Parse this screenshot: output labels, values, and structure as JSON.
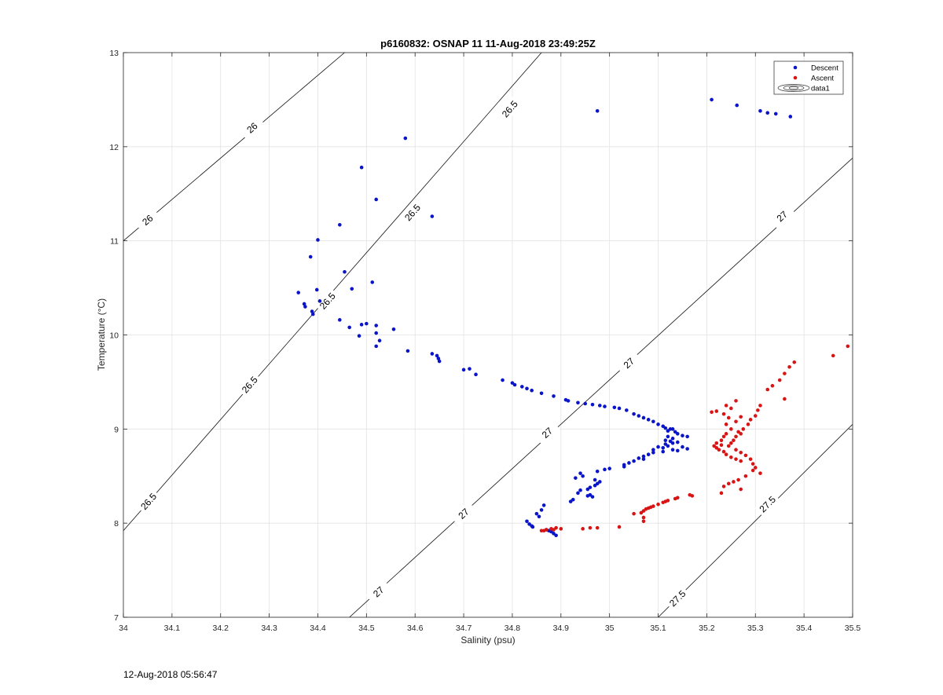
{
  "chart_data": {
    "type": "scatter",
    "title": "p6160832: OSNAP 11 11-Aug-2018 23:49:25Z",
    "xlabel": "Salinity (psu)",
    "ylabel": "Temperature (°C)",
    "xlim": [
      34,
      35.5
    ],
    "ylim": [
      7,
      13
    ],
    "xticks": [
      "34",
      "34.1",
      "34.2",
      "34.3",
      "34.4",
      "34.5",
      "34.6",
      "34.7",
      "34.8",
      "34.9",
      "35",
      "35.1",
      "35.2",
      "35.3",
      "35.4",
      "35.5"
    ],
    "yticks": [
      "7",
      "8",
      "9",
      "10",
      "11",
      "12",
      "13"
    ],
    "grid": true,
    "legend": {
      "placement": "top-right",
      "entries": [
        "Descent",
        "Ascent",
        "data1"
      ]
    },
    "colors": {
      "descent": "#0a14c8",
      "ascent": "#d91414"
    },
    "contours": [
      {
        "label": "26",
        "points": [
          [
            34.0,
            11.0
          ],
          [
            34.455,
            13.0
          ]
        ],
        "label_positions": [
          [
            34.05,
            11.22
          ],
          [
            34.265,
            12.2
          ]
        ]
      },
      {
        "label": "26.5",
        "points": [
          [
            34.0,
            7.92
          ],
          [
            34.86,
            13.0
          ]
        ],
        "label_positions": [
          [
            34.052,
            8.23
          ],
          [
            34.26,
            9.47
          ],
          [
            34.42,
            10.36
          ],
          [
            34.595,
            11.3
          ],
          [
            34.795,
            12.4
          ]
        ]
      },
      {
        "label": "27",
        "points": [
          [
            34.465,
            7.0
          ],
          [
            35.5,
            11.88
          ]
        ],
        "label_positions": [
          [
            34.525,
            7.27
          ],
          [
            34.7,
            8.1
          ],
          [
            34.872,
            8.96
          ],
          [
            35.04,
            9.7
          ],
          [
            35.355,
            11.26
          ]
        ]
      },
      {
        "label": "27.5",
        "points": [
          [
            35.1,
            7.0
          ],
          [
            35.5,
            9.05
          ]
        ],
        "label_positions": [
          [
            35.14,
            7.2
          ],
          [
            35.325,
            8.2
          ]
        ]
      }
    ],
    "series": [
      {
        "name": "Descent",
        "points": [
          [
            35.21,
            12.5
          ],
          [
            35.262,
            12.44
          ],
          [
            35.31,
            12.38
          ],
          [
            35.325,
            12.36
          ],
          [
            35.342,
            12.35
          ],
          [
            35.372,
            12.32
          ],
          [
            34.975,
            12.38
          ],
          [
            34.58,
            12.09
          ],
          [
            34.49,
            11.78
          ],
          [
            34.52,
            11.44
          ],
          [
            34.635,
            11.26
          ],
          [
            34.445,
            11.17
          ],
          [
            34.4,
            11.01
          ],
          [
            34.385,
            10.83
          ],
          [
            34.455,
            10.67
          ],
          [
            34.512,
            10.56
          ],
          [
            34.47,
            10.49
          ],
          [
            34.398,
            10.48
          ],
          [
            34.36,
            10.45
          ],
          [
            34.404,
            10.36
          ],
          [
            34.372,
            10.33
          ],
          [
            34.374,
            10.3
          ],
          [
            34.388,
            10.25
          ],
          [
            34.39,
            10.22
          ],
          [
            34.445,
            10.16
          ],
          [
            34.5,
            10.12
          ],
          [
            34.49,
            10.11
          ],
          [
            34.52,
            10.1
          ],
          [
            34.465,
            10.08
          ],
          [
            34.556,
            10.06
          ],
          [
            34.52,
            10.02
          ],
          [
            34.485,
            9.99
          ],
          [
            34.527,
            9.94
          ],
          [
            34.52,
            9.88
          ],
          [
            34.585,
            9.83
          ],
          [
            34.635,
            9.8
          ],
          [
            34.645,
            9.78
          ],
          [
            34.648,
            9.75
          ],
          [
            34.65,
            9.72
          ],
          [
            34.7,
            9.63
          ],
          [
            34.712,
            9.64
          ],
          [
            34.725,
            9.58
          ],
          [
            34.78,
            9.52
          ],
          [
            34.8,
            9.49
          ],
          [
            34.805,
            9.47
          ],
          [
            34.82,
            9.45
          ],
          [
            34.83,
            9.43
          ],
          [
            34.84,
            9.41
          ],
          [
            34.86,
            9.38
          ],
          [
            34.885,
            9.35
          ],
          [
            34.91,
            9.31
          ],
          [
            34.915,
            9.3
          ],
          [
            34.935,
            9.28
          ],
          [
            34.95,
            9.27
          ],
          [
            34.965,
            9.26
          ],
          [
            34.98,
            9.25
          ],
          [
            34.99,
            9.24
          ],
          [
            35.01,
            9.23
          ],
          [
            35.02,
            9.22
          ],
          [
            35.035,
            9.2
          ],
          [
            35.05,
            9.16
          ],
          [
            35.06,
            9.14
          ],
          [
            35.07,
            9.12
          ],
          [
            35.08,
            9.1
          ],
          [
            35.09,
            9.08
          ],
          [
            35.1,
            9.05
          ],
          [
            35.11,
            9.03
          ],
          [
            35.115,
            9.01
          ],
          [
            35.125,
            9.0
          ],
          [
            35.13,
            9.0
          ],
          [
            35.12,
            8.98
          ],
          [
            35.135,
            8.97
          ],
          [
            35.14,
            8.95
          ],
          [
            35.15,
            8.93
          ],
          [
            35.16,
            8.92
          ],
          [
            35.12,
            8.92
          ],
          [
            35.13,
            8.9
          ],
          [
            35.115,
            8.88
          ],
          [
            35.125,
            8.87
          ],
          [
            35.14,
            8.86
          ],
          [
            35.13,
            8.85
          ],
          [
            35.115,
            8.84
          ],
          [
            35.12,
            8.82
          ],
          [
            35.1,
            8.81
          ],
          [
            35.11,
            8.8
          ],
          [
            35.15,
            8.81
          ],
          [
            35.16,
            8.79
          ],
          [
            35.13,
            8.78
          ],
          [
            35.14,
            8.77
          ],
          [
            35.11,
            8.76
          ],
          [
            35.09,
            8.78
          ],
          [
            35.09,
            8.75
          ],
          [
            35.08,
            8.73
          ],
          [
            35.07,
            8.71
          ],
          [
            35.06,
            8.69
          ],
          [
            35.07,
            8.68
          ],
          [
            35.05,
            8.66
          ],
          [
            35.04,
            8.64
          ],
          [
            35.03,
            8.62
          ],
          [
            35.03,
            8.6
          ],
          [
            35.0,
            8.58
          ],
          [
            34.99,
            8.57
          ],
          [
            34.975,
            8.55
          ],
          [
            34.94,
            8.53
          ],
          [
            34.945,
            8.5
          ],
          [
            34.93,
            8.48
          ],
          [
            34.97,
            8.46
          ],
          [
            34.98,
            8.44
          ],
          [
            34.975,
            8.42
          ],
          [
            34.97,
            8.4
          ],
          [
            34.96,
            8.38
          ],
          [
            34.955,
            8.36
          ],
          [
            34.94,
            8.35
          ],
          [
            34.935,
            8.32
          ],
          [
            34.96,
            8.3
          ],
          [
            34.965,
            8.28
          ],
          [
            34.955,
            8.29
          ],
          [
            34.925,
            8.25
          ],
          [
            34.92,
            8.23
          ],
          [
            34.865,
            8.19
          ],
          [
            34.86,
            8.14
          ],
          [
            34.85,
            8.1
          ],
          [
            34.855,
            8.07
          ],
          [
            34.83,
            8.02
          ],
          [
            34.835,
            7.99
          ],
          [
            34.84,
            7.97
          ],
          [
            34.842,
            7.96
          ],
          [
            34.87,
            7.93
          ],
          [
            34.875,
            7.92
          ],
          [
            34.88,
            7.91
          ],
          [
            34.885,
            7.89
          ],
          [
            34.89,
            7.87
          ]
        ]
      },
      {
        "name": "Ascent",
        "points": [
          [
            35.49,
            9.88
          ],
          [
            35.46,
            9.78
          ],
          [
            35.38,
            9.71
          ],
          [
            35.37,
            9.66
          ],
          [
            35.36,
            9.59
          ],
          [
            35.35,
            9.52
          ],
          [
            35.335,
            9.46
          ],
          [
            35.325,
            9.42
          ],
          [
            35.36,
            9.32
          ],
          [
            35.31,
            9.25
          ],
          [
            35.305,
            9.2
          ],
          [
            35.3,
            9.14
          ],
          [
            35.29,
            9.1
          ],
          [
            35.285,
            9.05
          ],
          [
            35.275,
            9.0
          ],
          [
            35.27,
            8.95
          ],
          [
            35.26,
            8.92
          ],
          [
            35.255,
            8.88
          ],
          [
            35.25,
            8.85
          ],
          [
            35.245,
            8.82
          ],
          [
            35.26,
            8.78
          ],
          [
            35.27,
            8.75
          ],
          [
            35.28,
            8.72
          ],
          [
            35.29,
            8.68
          ],
          [
            35.295,
            8.63
          ],
          [
            35.3,
            8.59
          ],
          [
            35.295,
            8.56
          ],
          [
            35.31,
            8.53
          ],
          [
            35.28,
            8.5
          ],
          [
            35.265,
            8.46
          ],
          [
            35.255,
            8.44
          ],
          [
            35.245,
            8.42
          ],
          [
            35.235,
            8.39
          ],
          [
            35.27,
            8.36
          ],
          [
            35.23,
            8.32
          ],
          [
            35.26,
            9.3
          ],
          [
            35.24,
            9.25
          ],
          [
            35.25,
            9.22
          ],
          [
            35.22,
            9.19
          ],
          [
            35.21,
            9.18
          ],
          [
            35.235,
            9.16
          ],
          [
            35.245,
            9.12
          ],
          [
            35.27,
            9.13
          ],
          [
            35.26,
            9.08
          ],
          [
            35.24,
            9.05
          ],
          [
            35.25,
            9.0
          ],
          [
            35.265,
            8.97
          ],
          [
            35.24,
            8.95
          ],
          [
            35.235,
            8.92
          ],
          [
            35.23,
            8.88
          ],
          [
            35.22,
            8.85
          ],
          [
            35.23,
            8.83
          ],
          [
            35.215,
            8.82
          ],
          [
            35.22,
            8.8
          ],
          [
            35.225,
            8.78
          ],
          [
            35.235,
            8.76
          ],
          [
            35.24,
            8.73
          ],
          [
            35.25,
            8.7
          ],
          [
            35.26,
            8.68
          ],
          [
            35.27,
            8.66
          ],
          [
            35.17,
            8.29
          ],
          [
            35.165,
            8.3
          ],
          [
            35.14,
            8.27
          ],
          [
            35.135,
            8.26
          ],
          [
            35.12,
            8.24
          ],
          [
            35.115,
            8.23
          ],
          [
            35.11,
            8.22
          ],
          [
            35.1,
            8.2
          ],
          [
            35.09,
            8.18
          ],
          [
            35.085,
            8.17
          ],
          [
            35.08,
            8.16
          ],
          [
            35.075,
            8.15
          ],
          [
            35.07,
            8.13
          ],
          [
            35.065,
            8.11
          ],
          [
            35.05,
            8.1
          ],
          [
            35.07,
            8.06
          ],
          [
            35.07,
            8.02
          ],
          [
            35.02,
            7.96
          ],
          [
            34.975,
            7.95
          ],
          [
            34.96,
            7.95
          ],
          [
            34.945,
            7.94
          ],
          [
            34.9,
            7.94
          ],
          [
            34.89,
            7.95
          ],
          [
            34.885,
            7.93
          ],
          [
            34.88,
            7.94
          ],
          [
            34.87,
            7.93
          ],
          [
            34.865,
            7.92
          ],
          [
            34.86,
            7.92
          ]
        ]
      }
    ]
  },
  "footer": {
    "timestamp": "12-Aug-2018 05:56:47"
  }
}
